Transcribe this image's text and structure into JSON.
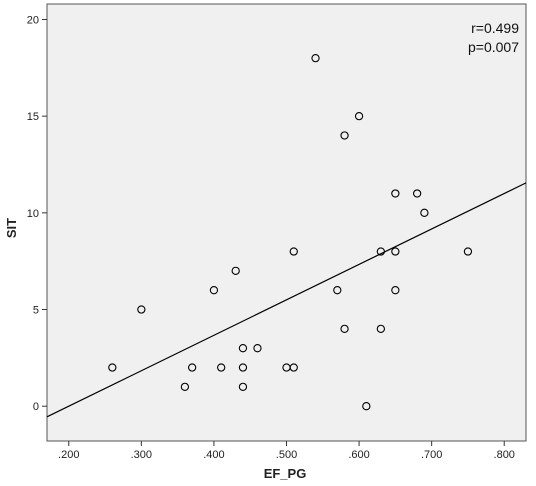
{
  "chart_data": {
    "type": "scatter",
    "xlabel": "EF_PG",
    "ylabel": "SIT",
    "xlim": [
      0.17,
      0.83
    ],
    "ylim": [
      -1.8,
      20.8
    ],
    "x_ticks": [
      {
        "value": 0.2,
        "label": ".200"
      },
      {
        "value": 0.3,
        "label": ".300"
      },
      {
        "value": 0.4,
        "label": ".400"
      },
      {
        "value": 0.5,
        "label": ".500"
      },
      {
        "value": 0.6,
        "label": ".600"
      },
      {
        "value": 0.7,
        "label": ".700"
      },
      {
        "value": 0.8,
        "label": ".800"
      }
    ],
    "y_ticks": [
      {
        "value": 0,
        "label": "0"
      },
      {
        "value": 5,
        "label": "5"
      },
      {
        "value": 10,
        "label": "10"
      },
      {
        "value": 15,
        "label": "15"
      },
      {
        "value": 20,
        "label": "20"
      }
    ],
    "points": [
      {
        "x": 0.26,
        "y": 2
      },
      {
        "x": 0.3,
        "y": 5
      },
      {
        "x": 0.36,
        "y": 1
      },
      {
        "x": 0.37,
        "y": 2
      },
      {
        "x": 0.4,
        "y": 6
      },
      {
        "x": 0.41,
        "y": 2
      },
      {
        "x": 0.43,
        "y": 7
      },
      {
        "x": 0.44,
        "y": 3
      },
      {
        "x": 0.44,
        "y": 2
      },
      {
        "x": 0.44,
        "y": 1
      },
      {
        "x": 0.46,
        "y": 3
      },
      {
        "x": 0.5,
        "y": 2
      },
      {
        "x": 0.51,
        "y": 2
      },
      {
        "x": 0.51,
        "y": 8
      },
      {
        "x": 0.54,
        "y": 18
      },
      {
        "x": 0.57,
        "y": 6
      },
      {
        "x": 0.58,
        "y": 14
      },
      {
        "x": 0.58,
        "y": 4
      },
      {
        "x": 0.6,
        "y": 15
      },
      {
        "x": 0.61,
        "y": 0
      },
      {
        "x": 0.63,
        "y": 8
      },
      {
        "x": 0.63,
        "y": 4
      },
      {
        "x": 0.65,
        "y": 11
      },
      {
        "x": 0.65,
        "y": 8
      },
      {
        "x": 0.65,
        "y": 6
      },
      {
        "x": 0.68,
        "y": 11
      },
      {
        "x": 0.69,
        "y": 10
      },
      {
        "x": 0.75,
        "y": 8
      }
    ],
    "fit_line": {
      "x": [
        0.17,
        0.83
      ],
      "y": [
        -0.55,
        11.55
      ]
    },
    "annotations": [
      "r=0.499",
      "p=0.007"
    ],
    "grid": false,
    "colors": {
      "plot_background": "#f0f0f0",
      "marker_edge": "#000000",
      "fit_line": "#000000"
    }
  }
}
